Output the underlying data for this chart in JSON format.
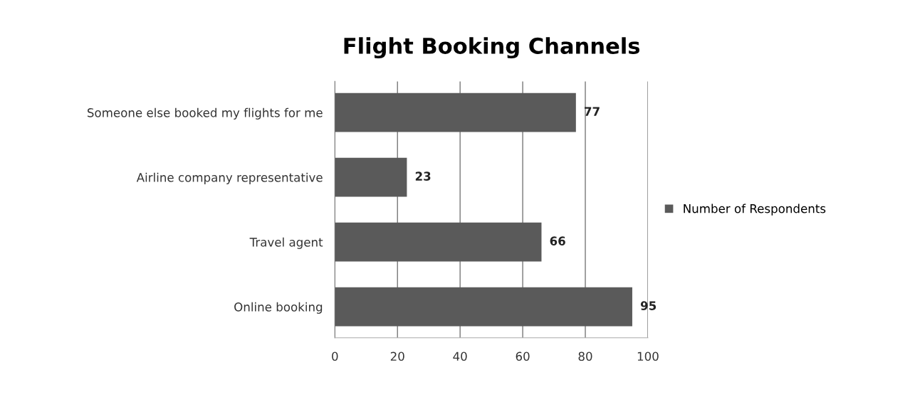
{
  "chart_data": {
    "type": "bar",
    "orientation": "horizontal",
    "title": "Flight Booking Channels",
    "categories": [
      "Someone else booked my flights for me",
      "Airline company representative",
      "Travel agent",
      "Online booking"
    ],
    "series": [
      {
        "name": "Number of Respondents",
        "color": "#5a5a5a",
        "values": [
          77,
          23,
          66,
          95
        ]
      }
    ],
    "xlim": [
      0,
      100
    ],
    "xticks": [
      0,
      20,
      40,
      60,
      80,
      100
    ],
    "grid": "x",
    "legend": "right",
    "data_labels": true
  }
}
